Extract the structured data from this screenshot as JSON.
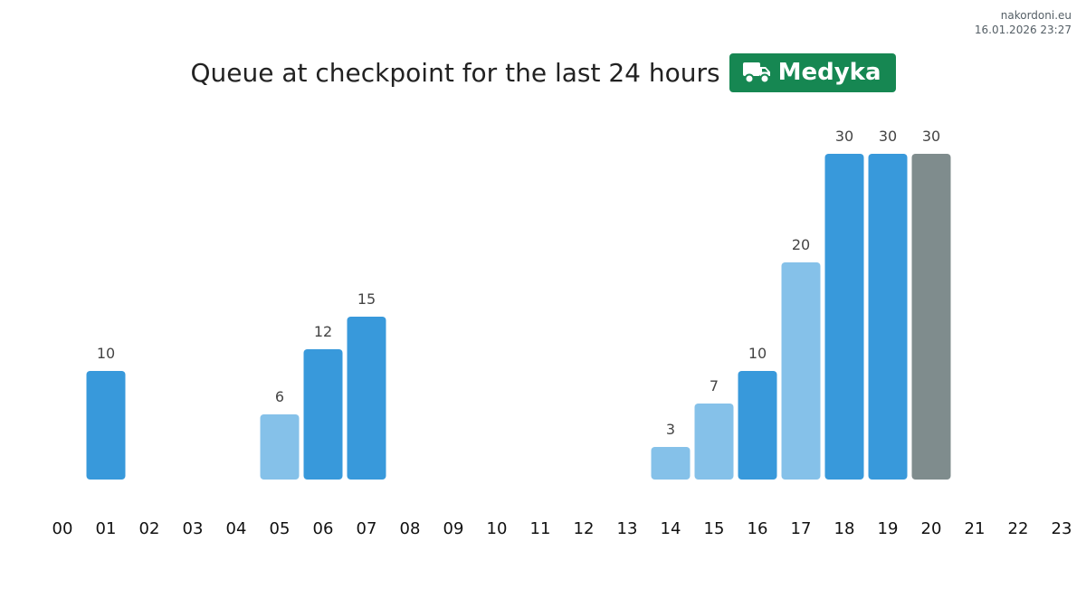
{
  "site": "nakordoni.eu",
  "timestamp": "16.01.2026 23:27",
  "title": "Queue at checkpoint for the last 24 hours",
  "checkpoint": "Medyka",
  "icon": "truck-icon",
  "colors": {
    "badge": "#168752",
    "bar_dark": "#3899db",
    "bar_light": "#85c1e9",
    "bar_current": "#7f8c8d"
  },
  "chart_data": {
    "type": "bar",
    "title": "Queue at checkpoint for the last 24 hours",
    "categories": [
      "00",
      "01",
      "02",
      "03",
      "04",
      "05",
      "06",
      "07",
      "08",
      "09",
      "10",
      "11",
      "12",
      "13",
      "14",
      "15",
      "16",
      "17",
      "18",
      "19",
      "20",
      "21",
      "22",
      "23"
    ],
    "values": [
      null,
      10,
      null,
      null,
      null,
      6,
      12,
      15,
      null,
      null,
      null,
      null,
      null,
      null,
      3,
      7,
      10,
      20,
      30,
      30,
      30,
      null,
      null,
      null
    ],
    "bar_colors": [
      null,
      "dark",
      null,
      null,
      null,
      "light",
      "dark",
      "dark",
      null,
      null,
      null,
      null,
      null,
      null,
      "light",
      "light",
      "dark",
      "light",
      "dark",
      "dark",
      "current",
      null,
      null,
      null
    ],
    "ylim": [
      0,
      30
    ],
    "grid": false,
    "xlabel": "",
    "ylabel": ""
  }
}
